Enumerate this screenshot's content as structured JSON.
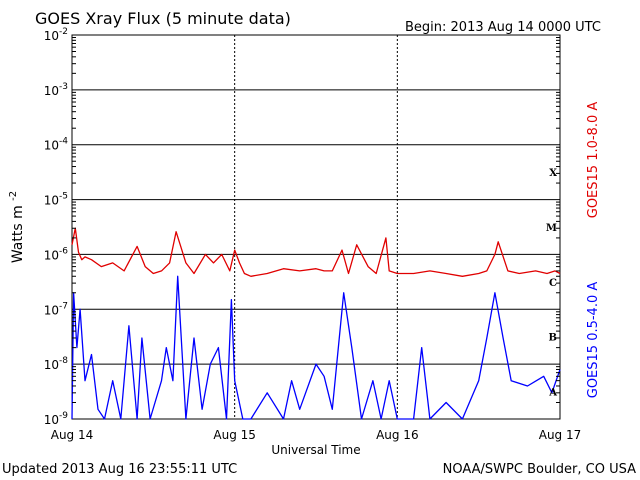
{
  "header": {
    "title": "GOES Xray Flux (5 minute data)",
    "begin": "Begin:  2013 Aug 14 0000 UTC"
  },
  "footer": {
    "updated": "Updated 2013 Aug 16 23:55:11 UTC",
    "source": "NOAA/SWPC Boulder, CO USA"
  },
  "colors": {
    "long_channel": "#e00000",
    "short_channel": "#0000ff",
    "axis": "#000000"
  },
  "chart_data": {
    "type": "line",
    "xlabel": "Universal Time",
    "ylabel_base": "Watts m",
    "ylabel_exp": "-2",
    "yscale": "log",
    "ylim": [
      1e-09,
      0.01
    ],
    "xlim": [
      0,
      3
    ],
    "grid": true,
    "x_ticks": [
      {
        "x": 0,
        "label": "Aug 14"
      },
      {
        "x": 1,
        "label": "Aug 15"
      },
      {
        "x": 2,
        "label": "Aug 16"
      },
      {
        "x": 3,
        "label": "Aug 17"
      }
    ],
    "y_ticks": [
      {
        "exp": -2,
        "label": "10",
        "sup": "-2"
      },
      {
        "exp": -3,
        "label": "10",
        "sup": "-3"
      },
      {
        "exp": -4,
        "label": "10",
        "sup": "-4"
      },
      {
        "exp": -5,
        "label": "10",
        "sup": "-5"
      },
      {
        "exp": -6,
        "label": "10",
        "sup": "-6"
      },
      {
        "exp": -7,
        "label": "10",
        "sup": "-7"
      },
      {
        "exp": -8,
        "label": "10",
        "sup": "-8"
      },
      {
        "exp": -9,
        "label": "10",
        "sup": "-9"
      }
    ],
    "flare_classes": [
      {
        "label": "X",
        "exp": -4
      },
      {
        "label": "M",
        "exp": -5
      },
      {
        "label": "C",
        "exp": -6
      },
      {
        "label": "B",
        "exp": -7
      },
      {
        "label": "A",
        "exp": -8
      }
    ],
    "series": [
      {
        "name": "GOES15 1.0-8.0 A",
        "color": "#e00000",
        "x": [
          0,
          0.02,
          0.04,
          0.06,
          0.08,
          0.12,
          0.18,
          0.25,
          0.32,
          0.4,
          0.45,
          0.5,
          0.55,
          0.6,
          0.64,
          0.7,
          0.75,
          0.82,
          0.87,
          0.92,
          0.97,
          1.0,
          1.03,
          1.06,
          1.1,
          1.2,
          1.3,
          1.4,
          1.5,
          1.55,
          1.6,
          1.66,
          1.7,
          1.75,
          1.82,
          1.87,
          1.93,
          1.95,
          2.0,
          2.1,
          2.2,
          2.3,
          2.4,
          2.5,
          2.55,
          2.6,
          2.62,
          2.68,
          2.75,
          2.85,
          2.92,
          2.97,
          3.0
        ],
        "y": [
          1.5e-06,
          3e-06,
          1.1e-06,
          8e-07,
          9e-07,
          8e-07,
          6e-07,
          7e-07,
          5e-07,
          1.4e-06,
          6e-07,
          4.5e-07,
          5e-07,
          7e-07,
          2.6e-06,
          7e-07,
          4.5e-07,
          1e-06,
          7e-07,
          1e-06,
          5e-07,
          1.2e-06,
          7e-07,
          4.5e-07,
          4e-07,
          4.5e-07,
          5.5e-07,
          5e-07,
          5.5e-07,
          5e-07,
          5e-07,
          1.2e-06,
          4.5e-07,
          1.5e-06,
          6e-07,
          4.5e-07,
          2e-06,
          5e-07,
          4.5e-07,
          4.5e-07,
          5e-07,
          4.5e-07,
          4e-07,
          4.5e-07,
          5e-07,
          1e-06,
          1.7e-06,
          5e-07,
          4.5e-07,
          5e-07,
          4.5e-07,
          5e-07,
          4.5e-07
        ]
      },
      {
        "name": "GOES15 0.5-4.0 A",
        "color": "#0000ff",
        "x": [
          0,
          0.01,
          0.03,
          0.05,
          0.08,
          0.12,
          0.16,
          0.2,
          0.25,
          0.3,
          0.35,
          0.4,
          0.43,
          0.48,
          0.55,
          0.58,
          0.62,
          0.65,
          0.7,
          0.75,
          0.8,
          0.85,
          0.9,
          0.95,
          0.98,
          1.0,
          1.05,
          1.1,
          1.2,
          1.3,
          1.35,
          1.4,
          1.5,
          1.55,
          1.6,
          1.67,
          1.72,
          1.78,
          1.85,
          1.9,
          1.95,
          2.0,
          2.1,
          2.15,
          2.2,
          2.3,
          2.4,
          2.5,
          2.55,
          2.6,
          2.65,
          2.7,
          2.8,
          2.9,
          2.95,
          3.0
        ],
        "y": [
          1e-09,
          2e-07,
          2e-08,
          1e-07,
          5e-09,
          1.5e-08,
          1.5e-09,
          1e-09,
          5e-09,
          1e-09,
          5e-08,
          1e-09,
          3e-08,
          1e-09,
          5e-09,
          2e-08,
          5e-09,
          4e-07,
          1e-09,
          3e-08,
          1.5e-09,
          1e-08,
          2e-08,
          1e-09,
          1.5e-07,
          5e-09,
          1e-09,
          1e-09,
          3e-09,
          1e-09,
          5e-09,
          1.5e-09,
          1e-08,
          6e-09,
          1.5e-09,
          2e-07,
          2e-08,
          1e-09,
          5e-09,
          1e-09,
          5e-09,
          1e-09,
          1e-09,
          2e-08,
          1e-09,
          2e-09,
          1e-09,
          5e-09,
          3e-08,
          2e-07,
          3e-08,
          5e-09,
          4e-09,
          6e-09,
          3e-09,
          8e-09
        ]
      }
    ]
  }
}
